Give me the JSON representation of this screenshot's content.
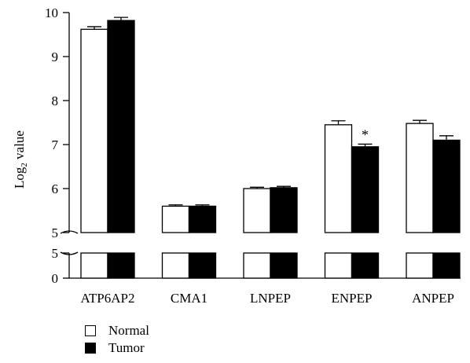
{
  "chart_data": {
    "type": "bar",
    "title": "",
    "xlabel": "",
    "ylabel_main": "Log",
    "ylabel_sub": "2",
    "ylabel_rest": " value",
    "categories": [
      "ATP6AP2",
      "CMA1",
      "LNPEP",
      "ENPEP",
      "ANPEP"
    ],
    "series": [
      {
        "name": "Normal",
        "color": "#ffffff",
        "values": [
          9.62,
          5.6,
          6.0,
          7.45,
          7.48
        ],
        "errors": [
          0.06,
          0.03,
          0.03,
          0.09,
          0.07
        ]
      },
      {
        "name": "Tumor",
        "color": "#000000",
        "values": [
          9.82,
          5.6,
          6.02,
          6.95,
          7.1
        ],
        "errors": [
          0.07,
          0.03,
          0.03,
          0.06,
          0.1
        ]
      }
    ],
    "ylim": [
      0,
      10
    ],
    "axis_break": [
      5,
      5
    ],
    "upper_ticks": [
      "5",
      "6",
      "7",
      "8",
      "9",
      "10"
    ],
    "lower_ticks": [
      "0",
      "5"
    ],
    "annotations": [
      {
        "category": "ENPEP",
        "series": "Tumor",
        "text": "*"
      }
    ],
    "legend_position": "bottom-left"
  }
}
